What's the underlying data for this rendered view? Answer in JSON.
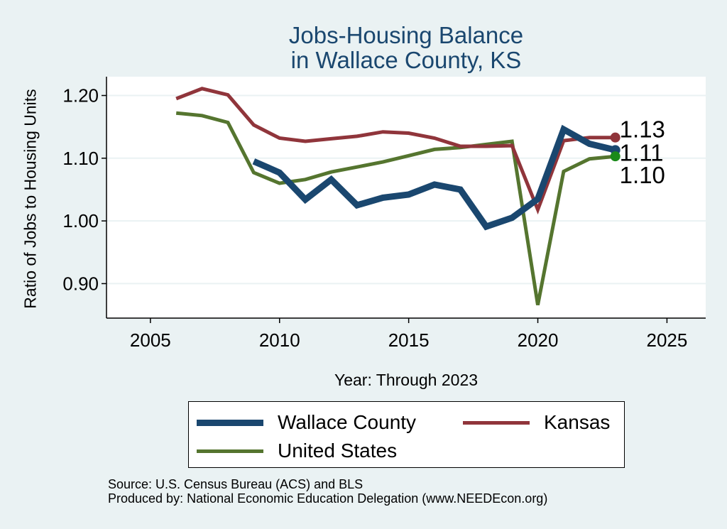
{
  "chart_data": {
    "type": "line",
    "title": [
      "Jobs-Housing Balance",
      "in Wallace County, KS"
    ],
    "xlabel": "Year: Through 2023",
    "ylabel": "Ratio of Jobs to Housing Units",
    "xlim": [
      2003.3,
      2026.5
    ],
    "ylim": [
      0.845,
      1.23
    ],
    "xticks": [
      "2005",
      "2010",
      "2015",
      "2020",
      "2025"
    ],
    "xtick_values": [
      2005,
      2010,
      2015,
      2020,
      2025
    ],
    "yticks": [
      "0.90",
      "1.00",
      "1.10",
      "1.20"
    ],
    "ytick_values": [
      0.9,
      1.0,
      1.1,
      1.2
    ],
    "grid": true,
    "legend_position": "bottom",
    "series": [
      {
        "name": "Wallace County",
        "color": "#1a476f",
        "x": [
          2009,
          2010,
          2011,
          2012,
          2013,
          2014,
          2015,
          2016,
          2017,
          2018,
          2019,
          2020,
          2021,
          2022,
          2023
        ],
        "values": [
          1.095,
          1.077,
          1.034,
          1.066,
          1.025,
          1.037,
          1.042,
          1.058,
          1.05,
          0.991,
          1.005,
          1.035,
          1.146,
          1.123,
          1.113
        ],
        "end_label": "1.11",
        "end_marker_color": "#1a476f"
      },
      {
        "name": "Kansas",
        "color": "#90353b",
        "x": [
          2006,
          2007,
          2008,
          2009,
          2010,
          2011,
          2012,
          2013,
          2014,
          2015,
          2016,
          2017,
          2018,
          2019,
          2020,
          2021,
          2022,
          2023
        ],
        "values": [
          1.195,
          1.211,
          1.201,
          1.153,
          1.132,
          1.127,
          1.131,
          1.135,
          1.142,
          1.14,
          1.132,
          1.119,
          1.119,
          1.12,
          1.018,
          1.128,
          1.133,
          1.133
        ],
        "end_label": "1.13",
        "end_marker_color": "#90353b"
      },
      {
        "name": "United States",
        "color": "#55752f",
        "x": [
          2006,
          2007,
          2008,
          2009,
          2010,
          2011,
          2012,
          2013,
          2014,
          2015,
          2016,
          2017,
          2018,
          2019,
          2020,
          2021,
          2022,
          2023
        ],
        "values": [
          1.172,
          1.168,
          1.157,
          1.077,
          1.06,
          1.066,
          1.078,
          1.086,
          1.094,
          1.104,
          1.114,
          1.117,
          1.122,
          1.127,
          0.866,
          1.079,
          1.099,
          1.103
        ],
        "end_label": "1.10",
        "end_marker_color": "#1a8a1a"
      }
    ]
  },
  "footer": {
    "source": "Source: U.S. Census Bureau (ACS) and BLS",
    "produced": "Produced by: National Economic Education Delegation (www.NEEDEcon.org)"
  }
}
